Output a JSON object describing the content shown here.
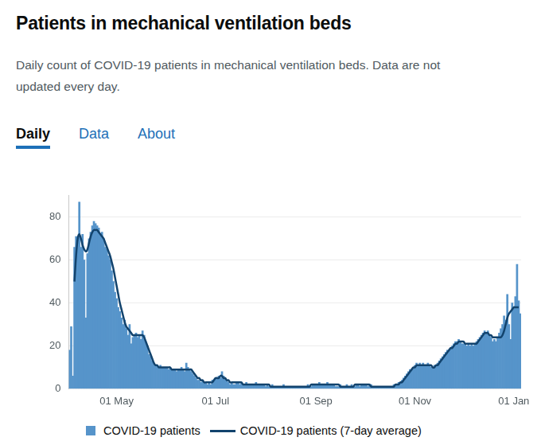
{
  "tabs": [
    "Daily",
    "Data",
    "About"
  ],
  "chart_data": {
    "type": "bar",
    "title": "Patients in mechanical ventilation beds",
    "subtitle": "Daily count of COVID-19 patients in mechanical ventilation beds. Data are not updated every day.",
    "categories": [
      null,
      null,
      null,
      null,
      null,
      null,
      null,
      null,
      null,
      null,
      null,
      null,
      null,
      null,
      null,
      null,
      null,
      null,
      null,
      null,
      null,
      null,
      null,
      null,
      null,
      null,
      null,
      null,
      null,
      "01 May",
      null,
      null,
      null,
      null,
      null,
      null,
      null,
      null,
      null,
      null,
      null,
      null,
      null,
      null,
      null,
      null,
      null,
      null,
      null,
      null,
      null,
      null,
      null,
      null,
      null,
      null,
      null,
      null,
      null,
      null,
      null,
      null,
      null,
      null,
      null,
      null,
      null,
      null,
      null,
      null,
      null,
      null,
      null,
      null,
      null,
      null,
      null,
      null,
      null,
      null,
      null,
      null,
      null,
      null,
      null,
      null,
      null,
      null,
      null,
      null,
      "01 Jul",
      null,
      null,
      null,
      null,
      null,
      null,
      null,
      null,
      null,
      null,
      null,
      null,
      null,
      null,
      null,
      null,
      null,
      null,
      null,
      null,
      null,
      null,
      null,
      null,
      null,
      null,
      null,
      null,
      null,
      null,
      null,
      null,
      null,
      null,
      null,
      null,
      null,
      null,
      null,
      null,
      null,
      null,
      null,
      null,
      null,
      null,
      null,
      null,
      null,
      null,
      null,
      null,
      null,
      null,
      null,
      null,
      null,
      null,
      null,
      null,
      null,
      "01 Sep",
      null,
      null,
      null,
      null,
      null,
      null,
      null,
      null,
      null,
      null,
      null,
      null,
      null,
      null,
      null,
      null,
      null,
      null,
      null,
      null,
      null,
      null,
      null,
      null,
      null,
      null,
      null,
      null,
      null,
      null,
      null,
      null,
      null,
      null,
      null,
      null,
      null,
      null,
      null,
      null,
      null,
      null,
      null,
      null,
      null,
      null,
      null,
      null,
      null,
      null,
      null,
      null,
      null,
      null,
      null,
      null,
      null,
      null,
      null,
      null,
      "01 Nov",
      null,
      null,
      null,
      null,
      null,
      null,
      null,
      null,
      null,
      null,
      null,
      null,
      null,
      null,
      null,
      null,
      null,
      null,
      null,
      null,
      null,
      null,
      null,
      null,
      null,
      null,
      null,
      null,
      null,
      null,
      null,
      null,
      null,
      null,
      null,
      null,
      null,
      null,
      null,
      null,
      null,
      null,
      null,
      null,
      null,
      null,
      null,
      null,
      null,
      null,
      null,
      null,
      null,
      null,
      null,
      null,
      null,
      null,
      null,
      null,
      "01 Jan",
      null,
      null,
      null,
      null
    ],
    "series": [
      {
        "name": "COVID-19 patients",
        "type": "bar",
        "color": "#5694ca",
        "values": [
          18,
          29,
          6,
          66,
          71,
          70,
          87,
          66,
          72,
          60,
          33,
          63,
          70,
          73,
          76,
          78,
          77,
          76,
          75,
          72,
          73,
          70,
          66,
          65,
          62,
          60,
          55,
          50,
          45,
          42,
          38,
          36,
          33,
          30,
          32,
          28,
          25,
          30,
          21,
          24,
          25,
          26,
          24,
          25,
          23,
          27,
          25,
          22,
          20,
          16,
          15,
          13,
          12,
          11,
          11,
          10,
          11,
          10,
          10,
          10,
          10,
          9,
          10,
          9,
          9,
          9,
          8,
          9,
          9,
          10,
          9,
          8,
          12,
          10,
          9,
          8,
          7,
          6,
          5,
          4,
          4,
          3,
          4,
          3,
          3,
          2,
          3,
          2,
          4,
          4,
          5,
          5,
          6,
          5,
          8,
          6,
          5,
          4,
          3,
          2,
          3,
          2,
          2,
          3,
          3,
          2,
          3,
          2,
          2,
          3,
          2,
          2,
          2,
          2,
          2,
          3,
          2,
          2,
          2,
          2,
          2,
          1,
          2,
          1,
          1,
          2,
          1,
          1,
          1,
          1,
          1,
          1,
          2,
          1,
          1,
          1,
          1,
          1,
          1,
          1,
          1,
          1,
          1,
          1,
          1,
          1,
          1,
          2,
          1,
          1,
          2,
          2,
          2,
          2,
          3,
          2,
          2,
          2,
          2,
          3,
          2,
          2,
          2,
          2,
          1,
          1,
          1,
          2,
          1,
          1,
          1,
          2,
          1,
          1,
          2,
          1,
          1,
          2,
          2,
          1,
          2,
          2,
          2,
          2,
          1,
          2,
          2,
          1,
          1,
          1,
          1,
          1,
          1,
          1,
          1,
          1,
          1,
          1,
          1,
          1,
          2,
          2,
          2,
          3,
          3,
          4,
          5,
          6,
          7,
          8,
          9,
          9,
          10,
          11,
          12,
          11,
          12,
          11,
          12,
          11,
          11,
          12,
          11,
          10,
          10,
          11,
          11,
          12,
          13,
          14,
          15,
          16,
          17,
          18,
          18,
          19,
          20,
          21,
          22,
          22,
          23,
          22,
          21,
          21,
          21,
          20,
          21,
          20,
          21,
          20,
          21,
          22,
          23,
          24,
          25,
          26,
          27,
          26,
          27,
          25,
          24,
          22,
          23,
          22,
          24,
          26,
          28,
          30,
          34,
          32,
          44,
          30,
          23,
          40,
          38,
          43,
          58,
          41,
          35
        ]
      },
      {
        "name": "COVID-19 patients (7-day average)",
        "type": "line",
        "color": "#12436d",
        "values": [
          null,
          null,
          null,
          50,
          62,
          70,
          72,
          70,
          67,
          65,
          64,
          65,
          68,
          71,
          73,
          74,
          74,
          74,
          73,
          72,
          71,
          70,
          68,
          66,
          64,
          62,
          59,
          56,
          52,
          48,
          44,
          40,
          37,
          34,
          31,
          29,
          28,
          27,
          26,
          25,
          25,
          25,
          25,
          25,
          25,
          25,
          24,
          22,
          20,
          18,
          16,
          14,
          12,
          11,
          11,
          10,
          10,
          10,
          10,
          10,
          10,
          10,
          10,
          9,
          9,
          9,
          9,
          9,
          9,
          9,
          9,
          9,
          9,
          9,
          9,
          9,
          8,
          7,
          6,
          5,
          5,
          4,
          4,
          3,
          3,
          3,
          3,
          3,
          3,
          4,
          5,
          5,
          5,
          6,
          6,
          5,
          5,
          4,
          4,
          3,
          3,
          3,
          3,
          3,
          3,
          3,
          3,
          2,
          2,
          2,
          2,
          2,
          2,
          2,
          2,
          2,
          2,
          2,
          2,
          2,
          2,
          2,
          2,
          2,
          1,
          1,
          1,
          1,
          1,
          1,
          1,
          1,
          1,
          1,
          1,
          1,
          1,
          1,
          1,
          1,
          1,
          1,
          1,
          1,
          1,
          1,
          1,
          1,
          1,
          2,
          2,
          2,
          2,
          2,
          2,
          2,
          2,
          2,
          2,
          2,
          2,
          2,
          2,
          2,
          2,
          2,
          2,
          1,
          1,
          1,
          1,
          1,
          1,
          1,
          1,
          1,
          2,
          2,
          2,
          2,
          2,
          2,
          2,
          2,
          2,
          2,
          1,
          1,
          1,
          1,
          1,
          1,
          1,
          1,
          1,
          1,
          1,
          1,
          1,
          1,
          1,
          2,
          2,
          2,
          3,
          3,
          4,
          5,
          6,
          7,
          8,
          9,
          10,
          10,
          11,
          11,
          11,
          11,
          11,
          11,
          11,
          11,
          11,
          11,
          10,
          10,
          11,
          11,
          12,
          13,
          14,
          15,
          16,
          17,
          18,
          19,
          19,
          20,
          21,
          21,
          22,
          22,
          22,
          22,
          21,
          21,
          21,
          21,
          21,
          21,
          21,
          21,
          22,
          23,
          24,
          25,
          26,
          26,
          26,
          25,
          25,
          24,
          24,
          24,
          24,
          24,
          24,
          25,
          27,
          30,
          33,
          35,
          36,
          37,
          38,
          38,
          38,
          38,
          null
        ]
      }
    ],
    "ylim": [
      0,
      90
    ],
    "yticks": [
      0,
      20,
      40,
      60,
      80
    ],
    "grid": true,
    "legend": "bottom"
  }
}
